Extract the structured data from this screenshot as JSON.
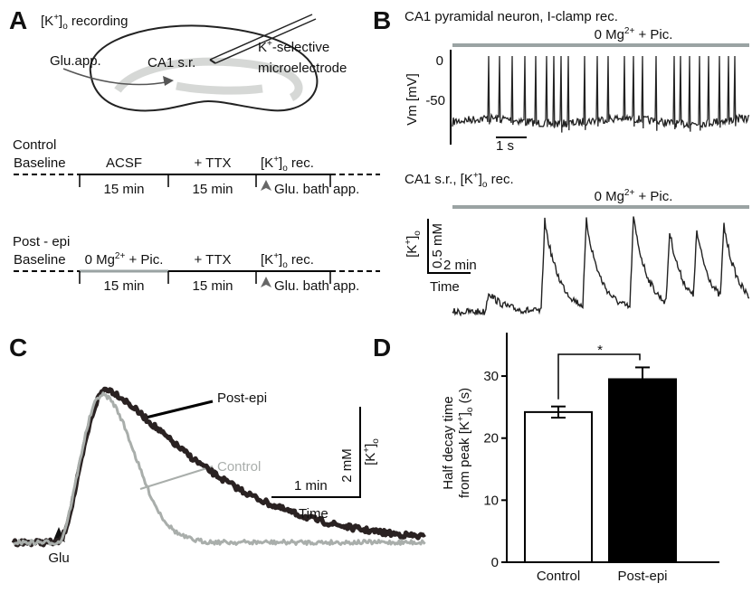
{
  "panel_a": {
    "letter": "A",
    "title": [
      "[K",
      {
        "sup": "+"
      },
      "]",
      {
        "sub": "o"
      },
      " recording"
    ],
    "glu_app": "Glu.app.",
    "ca1": "CA1 s.r.",
    "electrode": [
      "K",
      {
        "sup": "+"
      },
      "-selective"
    ],
    "microelectrode": "microelectrode",
    "protocols": [
      {
        "name": "Control",
        "labels": [
          "Baseline",
          "ACSF",
          "+ TTX",
          [
            "[K",
            {
              "sup": "+"
            },
            "]",
            {
              "sub": "o"
            },
            " rec."
          ]
        ],
        "durations": [
          "15 min",
          "15 min"
        ],
        "app": "Glu. bath app."
      },
      {
        "name": "Post - epi",
        "labels": [
          "Baseline",
          [
            "0 Mg",
            {
              "sup": "2+"
            },
            " + Pic."
          ],
          "+ TTX",
          [
            "[K",
            {
              "sup": "+"
            },
            "]",
            {
              "sub": "o"
            },
            " rec."
          ]
        ],
        "durations": [
          "15 min",
          "15 min"
        ],
        "app": "Glu. bath app."
      }
    ]
  },
  "panel_b": {
    "letter": "B",
    "title1": "CA1 pyramidal neuron, I-clamp rec.",
    "condition1": [
      "0 Mg",
      {
        "sup": "2+"
      },
      " + Pic."
    ],
    "vm_label": "Vm [mV]",
    "vm_ticks": [
      "0",
      "-50"
    ],
    "time_scale1": "1 s",
    "title2": [
      "CA1 s.r., [K",
      {
        "sup": "+"
      },
      "]",
      {
        "sub": "o"
      },
      " rec."
    ],
    "condition2": [
      "0 Mg",
      {
        "sup": "2+"
      },
      " + Pic."
    ],
    "k_label": [
      "[K",
      {
        "sup": "+"
      },
      "]",
      {
        "sub": "o"
      }
    ],
    "conc_scale": "0.5 mM",
    "time_scale2": "2 min",
    "time_label": "Time"
  },
  "panel_c": {
    "letter": "C",
    "post": "Post-epi",
    "control": "Control",
    "conc_scale": "2 mM",
    "k_label": [
      "[K",
      {
        "sup": "+"
      },
      "]",
      {
        "sub": "o"
      }
    ],
    "time_scale": "1 min",
    "time_label": "Time",
    "stim": "Glu"
  },
  "chart_data": {
    "type": "bar",
    "letter": "D",
    "ylabel": [
      [
        "Half decay time"
      ],
      [
        "from peak [K",
        {
          "sup": "+"
        },
        "]",
        {
          "sub": "o"
        },
        " (s)"
      ]
    ],
    "categories": [
      "Control",
      "Post-epi"
    ],
    "values": [
      24.2,
      29.5
    ],
    "errors": [
      0.9,
      1.9
    ],
    "colors": [
      "#ffffff",
      "#000000"
    ],
    "ylim": [
      0,
      37
    ],
    "yticks": [
      0,
      10,
      20,
      30
    ],
    "annotation": "*"
  }
}
